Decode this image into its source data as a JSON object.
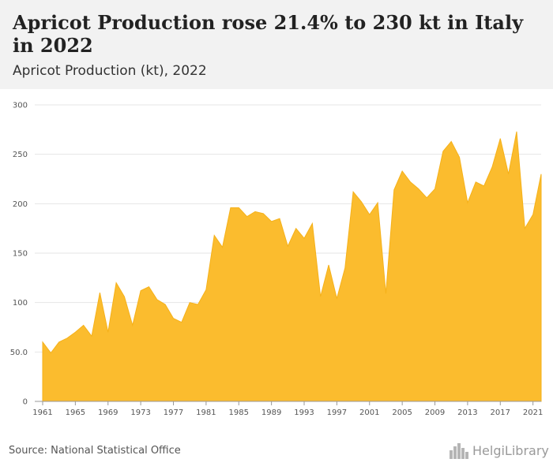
{
  "header": {
    "title": "Apricot Production rose 21.4% to 230 kt in Italy in 2022",
    "subtitle": "Apricot Production (kt), 2022"
  },
  "footer": {
    "source": "Source: National Statistical Office",
    "logo_text": "HelgiLibrary"
  },
  "colors": {
    "area_fill": "#fbbc2e",
    "area_stroke": "#f5b11a",
    "grid": "#e6e6e6",
    "header_bg": "#f2f2f2"
  },
  "chart_data": {
    "type": "area",
    "title": "Apricot Production (kt), 2022",
    "xlabel": "",
    "ylabel": "",
    "ylim": [
      0,
      300
    ],
    "grid": true,
    "y_ticks": [
      "0",
      "50.0",
      "100",
      "150",
      "200",
      "250",
      "300"
    ],
    "y_tick_values": [
      0,
      50,
      100,
      150,
      200,
      250,
      300
    ],
    "x_ticks": [
      "1961",
      "1965",
      "1969",
      "1973",
      "1977",
      "1981",
      "1985",
      "1989",
      "1993",
      "1997",
      "2001",
      "2005",
      "2009",
      "2013",
      "2017",
      "2021"
    ],
    "x": [
      1961,
      1962,
      1963,
      1964,
      1965,
      1966,
      1967,
      1968,
      1969,
      1970,
      1971,
      1972,
      1973,
      1974,
      1975,
      1976,
      1977,
      1978,
      1979,
      1980,
      1981,
      1982,
      1983,
      1984,
      1985,
      1986,
      1987,
      1988,
      1989,
      1990,
      1991,
      1992,
      1993,
      1994,
      1995,
      1996,
      1997,
      1998,
      1999,
      2000,
      2001,
      2002,
      2003,
      2004,
      2005,
      2006,
      2007,
      2008,
      2009,
      2010,
      2011,
      2012,
      2013,
      2014,
      2015,
      2016,
      2017,
      2018,
      2019,
      2020,
      2021,
      2022
    ],
    "values": [
      60,
      49,
      60,
      64,
      70,
      77,
      66,
      110,
      70,
      120,
      106,
      77,
      112,
      116,
      103,
      98,
      84,
      80,
      100,
      98,
      113,
      168,
      156,
      196,
      196,
      187,
      192,
      190,
      182,
      185,
      157,
      175,
      165,
      180,
      106,
      138,
      104,
      135,
      212,
      202,
      189,
      201,
      109,
      214,
      233,
      222,
      215,
      206,
      215,
      253,
      263,
      247,
      201,
      222,
      218,
      237,
      266,
      230,
      273,
      175,
      189,
      230
    ]
  }
}
